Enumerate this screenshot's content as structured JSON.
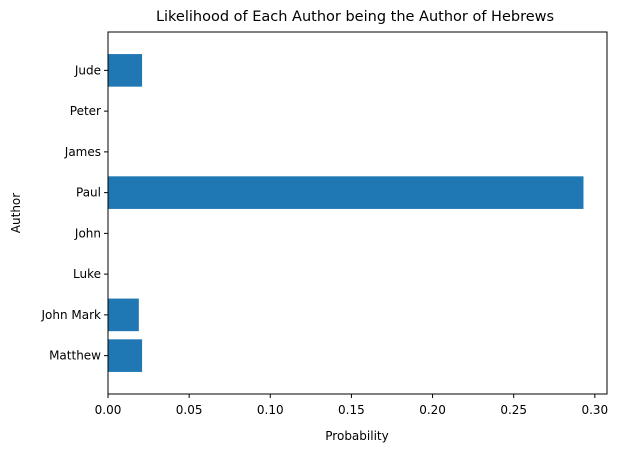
{
  "chart_data": {
    "type": "bar",
    "orientation": "horizontal",
    "title": "Likelihood of Each Author being the Author of Hebrews",
    "xlabel": "Probability",
    "ylabel": "Author",
    "categories": [
      "Matthew",
      "John Mark",
      "Luke",
      "John",
      "Paul",
      "James",
      "Peter",
      "Jude"
    ],
    "values": [
      0.021,
      0.019,
      0.0,
      0.0,
      0.293,
      0.0,
      0.0,
      0.021
    ],
    "xlim": [
      0,
      0.3075
    ],
    "xticks": [
      "0.00",
      "0.05",
      "0.10",
      "0.15",
      "0.20",
      "0.25",
      "0.30"
    ],
    "grid": false,
    "colors": {
      "bar": "#1f77b4",
      "axis": "#000000"
    }
  }
}
